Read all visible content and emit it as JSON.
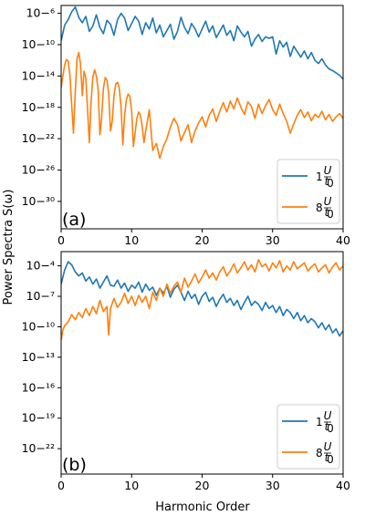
{
  "figure": {
    "ylabel": "Power Spectra S(ω)",
    "xlabel": "Harmonic Order"
  },
  "chart_data": [
    {
      "type": "line",
      "panel_label": "(a)",
      "xlabel": "",
      "ylabel": "Power Spectra S(ω)",
      "xlim": [
        0,
        40
      ],
      "ylog": true,
      "ylim_log10": [
        -33.5,
        -5
      ],
      "x_ticks": [
        0,
        10,
        20,
        30,
        40
      ],
      "y_ticks_log10": [
        -6,
        -10,
        -14,
        -18,
        -22,
        -26,
        -30
      ],
      "legend_position": "lower right",
      "series": [
        {
          "name": "1U/t0",
          "legend_main": "1",
          "legend_num": "U",
          "legend_den": "t",
          "legend_den_sub": "0",
          "color": "#1f77b4",
          "x": [
            0,
            0.5,
            1,
            1.5,
            2,
            2.5,
            3,
            3.5,
            4,
            4.5,
            5,
            5.5,
            6,
            6.5,
            7,
            7.5,
            8,
            8.5,
            9,
            9.5,
            10,
            10.5,
            11,
            11.5,
            12,
            12.5,
            13,
            13.5,
            14,
            14.5,
            15,
            15.5,
            16,
            16.5,
            17,
            17.5,
            18,
            18.5,
            19,
            19.5,
            20,
            20.5,
            21,
            21.5,
            22,
            22.5,
            23,
            23.5,
            24,
            24.5,
            25,
            25.5,
            26,
            26.5,
            27,
            27.5,
            28,
            28.5,
            29,
            29.5,
            30,
            30.5,
            31,
            31.5,
            32,
            32.5,
            33,
            33.5,
            34,
            34.5,
            35,
            35.5,
            36,
            36.5,
            37,
            37.5,
            38,
            38.5,
            39,
            39.5,
            40
          ],
          "y_log10": [
            -9.5,
            -7.5,
            -6.8,
            -5.8,
            -5.2,
            -6.5,
            -7.2,
            -6.4,
            -8.3,
            -7.6,
            -6.2,
            -7.8,
            -8.6,
            -6.9,
            -7.4,
            -8.8,
            -6.8,
            -6.0,
            -6.6,
            -8.2,
            -7.3,
            -6.4,
            -7.0,
            -8.7,
            -7.2,
            -8.0,
            -6.6,
            -8.5,
            -7.5,
            -9.0,
            -8.2,
            -7.4,
            -9.3,
            -8.3,
            -6.5,
            -7.8,
            -8.6,
            -7.3,
            -8.0,
            -9.0,
            -8.0,
            -7.0,
            -8.4,
            -7.6,
            -9.1,
            -8.3,
            -7.5,
            -8.8,
            -8.2,
            -9.5,
            -7.6,
            -8.4,
            -9.0,
            -8.3,
            -10.2,
            -9.3,
            -8.7,
            -9.6,
            -9.0,
            -9.2,
            -9.0,
            -11.2,
            -9.5,
            -10.3,
            -9.7,
            -11.5,
            -10.2,
            -10.9,
            -11.6,
            -10.8,
            -11.8,
            -11.0,
            -12.0,
            -12.4,
            -11.8,
            -12.6,
            -13.1,
            -13.3,
            -13.6,
            -13.9,
            -14.4
          ]
        },
        {
          "name": "8U/t0",
          "legend_main": "8",
          "legend_num": "U",
          "legend_den": "t",
          "legend_den_sub": "0",
          "color": "#ff7f0e",
          "x": [
            0,
            0.25,
            0.5,
            0.75,
            1,
            1.25,
            1.5,
            1.75,
            2,
            2.25,
            2.5,
            2.75,
            3,
            3.25,
            3.5,
            3.75,
            4,
            4.25,
            4.5,
            4.75,
            5,
            5.25,
            5.5,
            5.75,
            6,
            6.25,
            6.5,
            6.75,
            7,
            7.25,
            7.5,
            7.75,
            8,
            8.25,
            8.5,
            8.75,
            9,
            9.25,
            9.5,
            9.75,
            10,
            10.25,
            10.5,
            10.75,
            11,
            11.25,
            11.5,
            11.75,
            12,
            12.5,
            13,
            13.5,
            14,
            14.5,
            15,
            15.5,
            16,
            16.5,
            17,
            17.5,
            18,
            18.5,
            19,
            19.5,
            20,
            20.5,
            21,
            21.5,
            22,
            22.5,
            23,
            23.5,
            24,
            24.5,
            25,
            25.5,
            26,
            26.5,
            27,
            27.5,
            28,
            28.5,
            29,
            29.5,
            30,
            30.5,
            31,
            31.5,
            32,
            32.5,
            33,
            33.5,
            34,
            34.5,
            35,
            35.5,
            36,
            36.5,
            37,
            37.5,
            38,
            38.5,
            39,
            39.5,
            40
          ],
          "y_log10": [
            -15.5,
            -14.0,
            -12.6,
            -11.9,
            -12.1,
            -14.0,
            -17.8,
            -21.3,
            -16.0,
            -11.8,
            -11.0,
            -12.4,
            -16.5,
            -13.4,
            -14.2,
            -18.4,
            -22.5,
            -17.3,
            -14.1,
            -13.2,
            -14.0,
            -15.8,
            -21.5,
            -19.3,
            -15.6,
            -14.2,
            -14.5,
            -16.2,
            -21.0,
            -19.8,
            -16.5,
            -15.0,
            -14.8,
            -15.6,
            -18.0,
            -22.8,
            -19.1,
            -17.0,
            -16.3,
            -16.6,
            -18.5,
            -23.0,
            -21.2,
            -19.4,
            -18.6,
            -19.0,
            -20.4,
            -22.5,
            -21.0,
            -18.3,
            -23.5,
            -22.6,
            -24.5,
            -23.0,
            -22.0,
            -20.5,
            -19.4,
            -20.2,
            -22.3,
            -21.2,
            -20.2,
            -22.5,
            -21.0,
            -20.0,
            -19.2,
            -20.5,
            -19.0,
            -18.2,
            -19.8,
            -18.5,
            -17.4,
            -18.6,
            -17.2,
            -18.2,
            -16.8,
            -18.0,
            -18.9,
            -17.3,
            -17.9,
            -19.4,
            -17.6,
            -18.8,
            -17.8,
            -17.0,
            -18.3,
            -19.0,
            -17.6,
            -18.8,
            -19.8,
            -21.3,
            -20.1,
            -19.0,
            -18.3,
            -19.3,
            -18.6,
            -19.7,
            -18.9,
            -19.3,
            -18.5,
            -19.6,
            -18.9,
            -19.8,
            -19.2,
            -18.8,
            -19.4
          ]
        }
      ]
    },
    {
      "type": "line",
      "panel_label": "(b)",
      "xlabel": "Harmonic Order",
      "ylabel": "Power Spectra S(ω)",
      "xlim": [
        0,
        40
      ],
      "ylog": true,
      "ylim_log10": [
        -24.5,
        -2.6
      ],
      "x_ticks": [
        0,
        10,
        20,
        30,
        40
      ],
      "y_ticks_log10": [
        -4,
        -7,
        -10,
        -13,
        -16,
        -19,
        -22
      ],
      "legend_position": "lower right",
      "series": [
        {
          "name": "1U/t0",
          "legend_main": "1",
          "legend_num": "U",
          "legend_den": "t",
          "legend_den_sub": "0",
          "color": "#1f77b4",
          "x": [
            0,
            0.5,
            1,
            1.5,
            2,
            2.5,
            3,
            3.5,
            4,
            4.5,
            5,
            5.5,
            6,
            6.5,
            7,
            7.5,
            8,
            8.5,
            9,
            9.5,
            10,
            10.5,
            11,
            11.5,
            12,
            12.5,
            13,
            13.5,
            14,
            14.5,
            15,
            15.5,
            16,
            16.5,
            17,
            17.5,
            18,
            18.5,
            19,
            19.5,
            20,
            20.5,
            21,
            21.5,
            22,
            22.5,
            23,
            23.5,
            24,
            24.5,
            25,
            25.5,
            26,
            26.5,
            27,
            27.5,
            28,
            28.5,
            29,
            29.5,
            30,
            30.5,
            31,
            31.5,
            32,
            32.5,
            33,
            33.5,
            34,
            34.5,
            35,
            35.5,
            36,
            36.5,
            37,
            37.5,
            38,
            38.5,
            39,
            39.5,
            40
          ],
          "y_log10": [
            -5.8,
            -4.4,
            -3.6,
            -3.9,
            -4.6,
            -5.0,
            -4.7,
            -5.5,
            -5.1,
            -5.8,
            -5.3,
            -6.2,
            -5.6,
            -5.0,
            -5.9,
            -6.0,
            -5.4,
            -6.2,
            -5.7,
            -6.5,
            -5.9,
            -6.2,
            -5.6,
            -6.6,
            -5.8,
            -6.4,
            -6.1,
            -6.9,
            -6.2,
            -6.7,
            -6.0,
            -7.1,
            -6.3,
            -5.9,
            -6.6,
            -7.4,
            -6.5,
            -7.2,
            -6.8,
            -7.8,
            -7.0,
            -6.6,
            -7.5,
            -7.1,
            -8.0,
            -7.3,
            -6.8,
            -7.6,
            -7.2,
            -7.9,
            -7.4,
            -8.3,
            -7.6,
            -7.0,
            -7.9,
            -7.5,
            -7.8,
            -8.4,
            -7.6,
            -8.2,
            -7.9,
            -8.6,
            -8.0,
            -8.9,
            -8.3,
            -8.6,
            -9.2,
            -8.6,
            -9.4,
            -8.9,
            -9.6,
            -9.2,
            -9.5,
            -10.1,
            -9.6,
            -10.3,
            -9.8,
            -10.6,
            -10.2,
            -10.9,
            -10.4
          ]
        },
        {
          "name": "8U/t0",
          "legend_main": "8",
          "legend_num": "U",
          "legend_den": "t",
          "legend_den_sub": "0",
          "color": "#ff7f0e",
          "x": [
            0,
            0.25,
            0.5,
            1,
            1.5,
            2,
            2.5,
            3,
            3.5,
            4,
            4.5,
            5,
            5.5,
            6,
            6.5,
            6.75,
            7,
            7.5,
            8,
            8.5,
            9,
            9.5,
            10,
            10.5,
            11,
            11.5,
            12,
            12.5,
            13,
            13.5,
            14,
            14.5,
            15,
            15.5,
            16,
            16.5,
            17,
            17.5,
            18,
            18.5,
            19,
            19.5,
            20,
            20.5,
            21,
            21.5,
            22,
            22.5,
            23,
            23.5,
            24,
            24.5,
            25,
            25.5,
            26,
            26.5,
            27,
            27.5,
            28,
            28.5,
            29,
            29.5,
            30,
            30.5,
            31,
            31.5,
            32,
            32.5,
            33,
            33.5,
            34,
            34.5,
            35,
            35.5,
            36,
            36.5,
            37,
            37.5,
            38,
            38.5,
            39,
            39.5,
            40
          ],
          "y_log10": [
            -11.3,
            -10.3,
            -9.9,
            -9.5,
            -8.8,
            -9.3,
            -8.6,
            -9.1,
            -8.2,
            -8.9,
            -8.0,
            -8.7,
            -7.4,
            -8.5,
            -8.0,
            -10.8,
            -8.2,
            -7.2,
            -8.1,
            -7.6,
            -6.7,
            -7.7,
            -7.0,
            -7.9,
            -6.9,
            -7.6,
            -7.0,
            -8.2,
            -6.6,
            -7.4,
            -6.2,
            -7.0,
            -5.8,
            -6.7,
            -6.0,
            -5.6,
            -6.6,
            -5.2,
            -6.1,
            -5.5,
            -4.8,
            -5.7,
            -5.1,
            -4.4,
            -5.2,
            -4.7,
            -5.4,
            -4.6,
            -4.1,
            -5.0,
            -4.5,
            -3.8,
            -4.7,
            -4.2,
            -3.6,
            -4.4,
            -3.9,
            -4.6,
            -3.4,
            -4.1,
            -3.8,
            -4.5,
            -3.7,
            -4.2,
            -3.5,
            -4.6,
            -4.0,
            -4.4,
            -3.6,
            -4.3,
            -4.0,
            -3.7,
            -4.5,
            -4.1,
            -3.8,
            -4.6,
            -4.2,
            -3.9,
            -4.7,
            -4.1,
            -3.7,
            -4.4,
            -4.0
          ]
        }
      ]
    }
  ]
}
